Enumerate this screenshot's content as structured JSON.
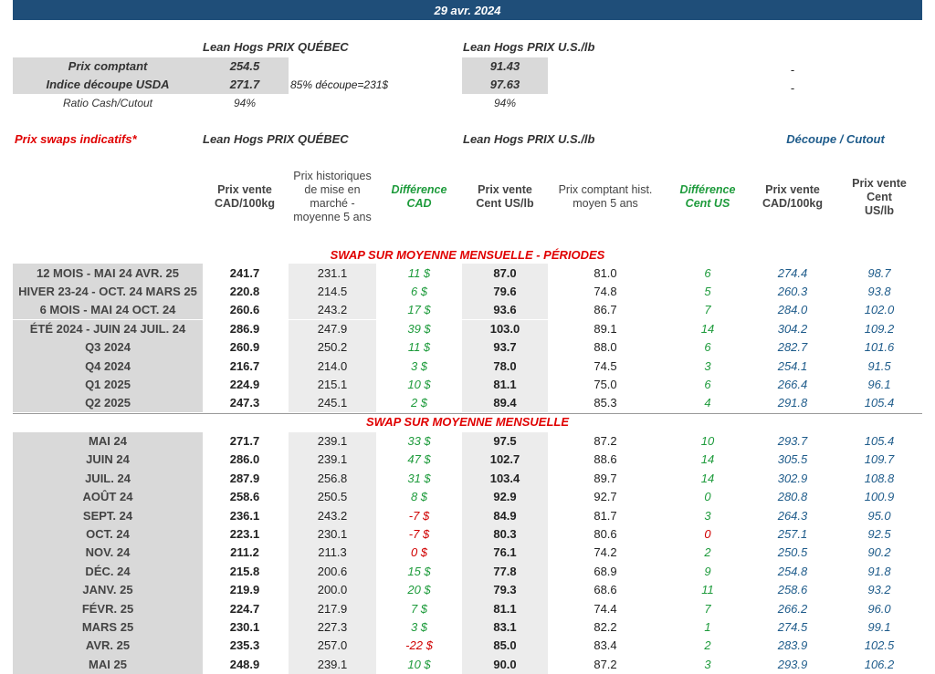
{
  "header": {
    "date": "29 avr. 2024"
  },
  "summary": {
    "quebec_title": "Lean Hogs PRIX QUÉBEC",
    "us_title": "Lean Hogs PRIX U.S./lb",
    "rows": [
      {
        "label": "Prix comptant",
        "quebec": "254.5",
        "note": null,
        "us": "91.43",
        "other": "-"
      },
      {
        "label": "Indice découpe USDA",
        "quebec": "271.7",
        "note": "85% découpe=231$",
        "us": "97.63",
        "other": "-"
      },
      {
        "label": "Ratio Cash/Cutout",
        "quebec": "94%",
        "note": null,
        "us": "94%",
        "other": null
      }
    ]
  },
  "swaps": {
    "title": "Prix swaps indicatifs*",
    "quebec_title": "Lean Hogs PRIX QUÉBEC",
    "us_title": "Lean Hogs PRIX U.S./lb",
    "cutout_title": "Découpe / Cutout",
    "columns": [
      "Prix vente\nCAD/100kg",
      "Prix historiques de mise en marché - moyenne 5 ans",
      "Différence\nCAD",
      "Prix vente\nCent US/lb",
      "Prix comptant hist.\nmoyen 5 ans",
      "Différence\nCent US",
      "Prix vente\nCAD/100kg",
      "Prix vente\nCent US/lb"
    ],
    "sections": [
      {
        "title": "SWAP SUR MOYENNE MENSUELLE - PÉRIODES",
        "rows": [
          {
            "label": "12 MOIS - MAI 24 AVR. 25",
            "cells": [
              "241.7",
              "231.1",
              "11 $",
              "87.0",
              "81.0",
              "6",
              "274.4",
              "98.7"
            ],
            "colors": [
              "#1e9b3c",
              "#1e9b3c"
            ]
          },
          {
            "label": "HIVER 23-24 - OCT. 24 MARS 25",
            "cells": [
              "220.8",
              "214.5",
              "6 $",
              "79.6",
              "74.8",
              "5",
              "260.3",
              "93.8"
            ],
            "colors": [
              "#1e9b3c",
              "#1e9b3c"
            ]
          },
          {
            "label": "6 MOIS - MAI 24 OCT. 24",
            "cells": [
              "260.6",
              "243.2",
              "17 $",
              "93.6",
              "86.7",
              "7",
              "284.0",
              "102.0"
            ],
            "colors": [
              "#1e9b3c",
              "#1e9b3c"
            ]
          },
          {
            "label": "ÉTÉ 2024 - JUIN 24 JUIL. 24",
            "cells": [
              "286.9",
              "247.9",
              "39 $",
              "103.0",
              "89.1",
              "14",
              "304.2",
              "109.2"
            ],
            "colors": [
              "#1e9b3c",
              "#1e9b3c"
            ]
          },
          {
            "label": "Q3 2024",
            "cells": [
              "260.9",
              "250.2",
              "11 $",
              "93.7",
              "88.0",
              "6",
              "282.7",
              "101.6"
            ],
            "colors": [
              "#1e9b3c",
              "#1e9b3c"
            ]
          },
          {
            "label": "Q4 2024",
            "cells": [
              "216.7",
              "214.0",
              "3 $",
              "78.0",
              "74.5",
              "3",
              "254.1",
              "91.5"
            ],
            "colors": [
              "#1e9b3c",
              "#1e9b3c"
            ]
          },
          {
            "label": "Q1 2025",
            "cells": [
              "224.9",
              "215.1",
              "10 $",
              "81.1",
              "75.0",
              "6",
              "266.4",
              "96.1"
            ],
            "colors": [
              "#1e9b3c",
              "#1e9b3c"
            ]
          },
          {
            "label": "Q2 2025",
            "cells": [
              "247.3",
              "245.1",
              "2 $",
              "89.4",
              "85.3",
              "4",
              "291.8",
              "105.4"
            ],
            "colors": [
              "#1e9b3c",
              "#1e9b3c"
            ]
          }
        ]
      },
      {
        "title": "SWAP SUR MOYENNE MENSUELLE",
        "rows": [
          {
            "label": "MAI 24",
            "cells": [
              "271.7",
              "239.1",
              "33 $",
              "97.5",
              "87.2",
              "10",
              "293.7",
              "105.4"
            ],
            "colors": [
              "#1e9b3c",
              "#1e9b3c"
            ]
          },
          {
            "label": "JUIN 24",
            "cells": [
              "286.0",
              "239.1",
              "47 $",
              "102.7",
              "88.6",
              "14",
              "305.5",
              "109.7"
            ],
            "colors": [
              "#1e9b3c",
              "#1e9b3c"
            ]
          },
          {
            "label": "JUIL. 24",
            "cells": [
              "287.9",
              "256.8",
              "31 $",
              "103.4",
              "89.7",
              "14",
              "302.9",
              "108.8"
            ],
            "colors": [
              "#1e9b3c",
              "#1e9b3c"
            ]
          },
          {
            "label": "AOÛT 24",
            "cells": [
              "258.6",
              "250.5",
              "8 $",
              "92.9",
              "92.7",
              "0",
              "280.8",
              "100.9"
            ],
            "colors": [
              "#1e9b3c",
              "#1e9b3c"
            ]
          },
          {
            "label": "SEPT. 24",
            "cells": [
              "236.1",
              "243.2",
              "-7 $",
              "84.9",
              "81.7",
              "3",
              "264.3",
              "95.0"
            ],
            "colors": [
              "#d00000",
              "#1e9b3c"
            ]
          },
          {
            "label": "OCT. 24",
            "cells": [
              "223.1",
              "230.1",
              "-7 $",
              "80.3",
              "80.6",
              "0",
              "257.1",
              "92.5"
            ],
            "colors": [
              "#d00000",
              "#d00000"
            ]
          },
          {
            "label": "NOV. 24",
            "cells": [
              "211.2",
              "211.3",
              "0 $",
              "76.1",
              "74.2",
              "2",
              "250.5",
              "90.2"
            ],
            "colors": [
              "#d00000",
              "#1e9b3c"
            ]
          },
          {
            "label": "DÉC. 24",
            "cells": [
              "215.8",
              "200.6",
              "15 $",
              "77.8",
              "68.9",
              "9",
              "254.8",
              "91.8"
            ],
            "colors": [
              "#1e9b3c",
              "#1e9b3c"
            ]
          },
          {
            "label": "JANV. 25",
            "cells": [
              "219.9",
              "200.0",
              "20 $",
              "79.3",
              "68.6",
              "11",
              "258.6",
              "93.2"
            ],
            "colors": [
              "#1e9b3c",
              "#1e9b3c"
            ]
          },
          {
            "label": "FÉVR. 25",
            "cells": [
              "224.7",
              "217.9",
              "7 $",
              "81.1",
              "74.4",
              "7",
              "266.2",
              "96.0"
            ],
            "colors": [
              "#1e9b3c",
              "#1e9b3c"
            ]
          },
          {
            "label": "MARS 25",
            "cells": [
              "230.1",
              "227.3",
              "3 $",
              "83.1",
              "82.2",
              "1",
              "274.5",
              "99.1"
            ],
            "colors": [
              "#1e9b3c",
              "#1e9b3c"
            ]
          },
          {
            "label": "AVR. 25",
            "cells": [
              "235.3",
              "257.0",
              "-22 $",
              "85.0",
              "83.4",
              "2",
              "283.9",
              "102.5"
            ],
            "colors": [
              "#d00000",
              "#1e9b3c"
            ]
          },
          {
            "label": "MAI 25",
            "cells": [
              "248.9",
              "239.1",
              "10 $",
              "90.0",
              "87.2",
              "3",
              "293.9",
              "106.2"
            ],
            "colors": [
              "#1e9b3c",
              "#1e9b3c"
            ]
          }
        ]
      }
    ]
  }
}
